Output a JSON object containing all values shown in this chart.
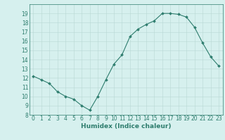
{
  "x": [
    0,
    1,
    2,
    3,
    4,
    5,
    6,
    7,
    8,
    9,
    10,
    11,
    12,
    13,
    14,
    15,
    16,
    17,
    18,
    19,
    20,
    21,
    22,
    23
  ],
  "y": [
    12.2,
    11.8,
    11.4,
    10.5,
    10.0,
    9.7,
    9.0,
    8.5,
    10.0,
    11.8,
    13.5,
    14.5,
    16.5,
    17.3,
    17.8,
    18.2,
    19.0,
    19.0,
    18.9,
    18.6,
    17.5,
    15.8,
    14.3,
    13.3
  ],
  "line_color": "#2e7d6e",
  "marker": "D",
  "marker_size": 2.0,
  "bg_color": "#d6f0ee",
  "grid_color": "#b8d8d4",
  "axis_color": "#2e7d6e",
  "xlabel": "Humidex (Indice chaleur)",
  "ylim": [
    8,
    20
  ],
  "yticks": [
    8,
    9,
    10,
    11,
    12,
    13,
    14,
    15,
    16,
    17,
    18,
    19
  ],
  "xlim": [
    -0.5,
    23.5
  ],
  "xticks": [
    0,
    1,
    2,
    3,
    4,
    5,
    6,
    7,
    8,
    9,
    10,
    11,
    12,
    13,
    14,
    15,
    16,
    17,
    18,
    19,
    20,
    21,
    22,
    23
  ],
  "xlabel_fontsize": 6.5,
  "tick_fontsize": 5.5,
  "linewidth": 0.8
}
